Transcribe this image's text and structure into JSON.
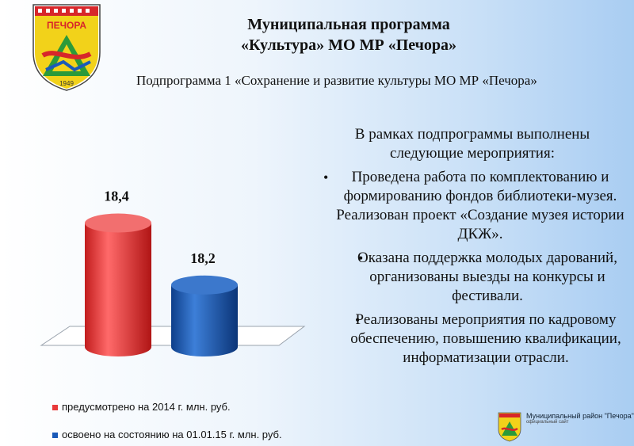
{
  "header": {
    "title_line1": "Муниципальная программа",
    "title_line2": "«Культура» МО МР «Печора»",
    "subtitle": "Подпрограмма 1 «Сохранение и развитие культуры МО МР «Печора»"
  },
  "crest": {
    "name": "ПЕЧОРА",
    "year": "1949"
  },
  "chart_data": {
    "type": "bar",
    "categories": [
      "предусмотрено на 2014 г. млн. руб.",
      "освоено на состоянию на 01.01.15 г. млн. руб."
    ],
    "values": [
      18.4,
      18.2
    ],
    "data_labels": [
      "18,4",
      "18,2"
    ],
    "ylim": [
      18.0,
      18.45
    ],
    "colors": [
      "#e83a3a",
      "#1a5ab8"
    ],
    "grid": false,
    "legend": "bottom"
  },
  "legend": [
    {
      "label": "предусмотрено на 2014 г. млн. руб.",
      "color": "#e83a3a"
    },
    {
      "label": "освоено на состоянию на 01.01.15 г. млн. руб.",
      "color": "#1a5ab8"
    }
  ],
  "info": {
    "intro": "В рамках подпрограммы выполнены следующие мероприятия:",
    "items": [
      "Проведена работа по комплектованию и формированию фондов библиотеки-музея. Реализован проект «Создание музея истории ДКЖ».",
      "Оказана поддержка молодых дарований, организованы выезды на конкурсы и фестивали.",
      "Реализованы мероприятия по кадровому обеспечению, повышению квалификации, информатизации отрасли."
    ]
  },
  "footer": {
    "text": "Муниципальный район \"Печора\"",
    "subtext": "официальный сайт"
  }
}
